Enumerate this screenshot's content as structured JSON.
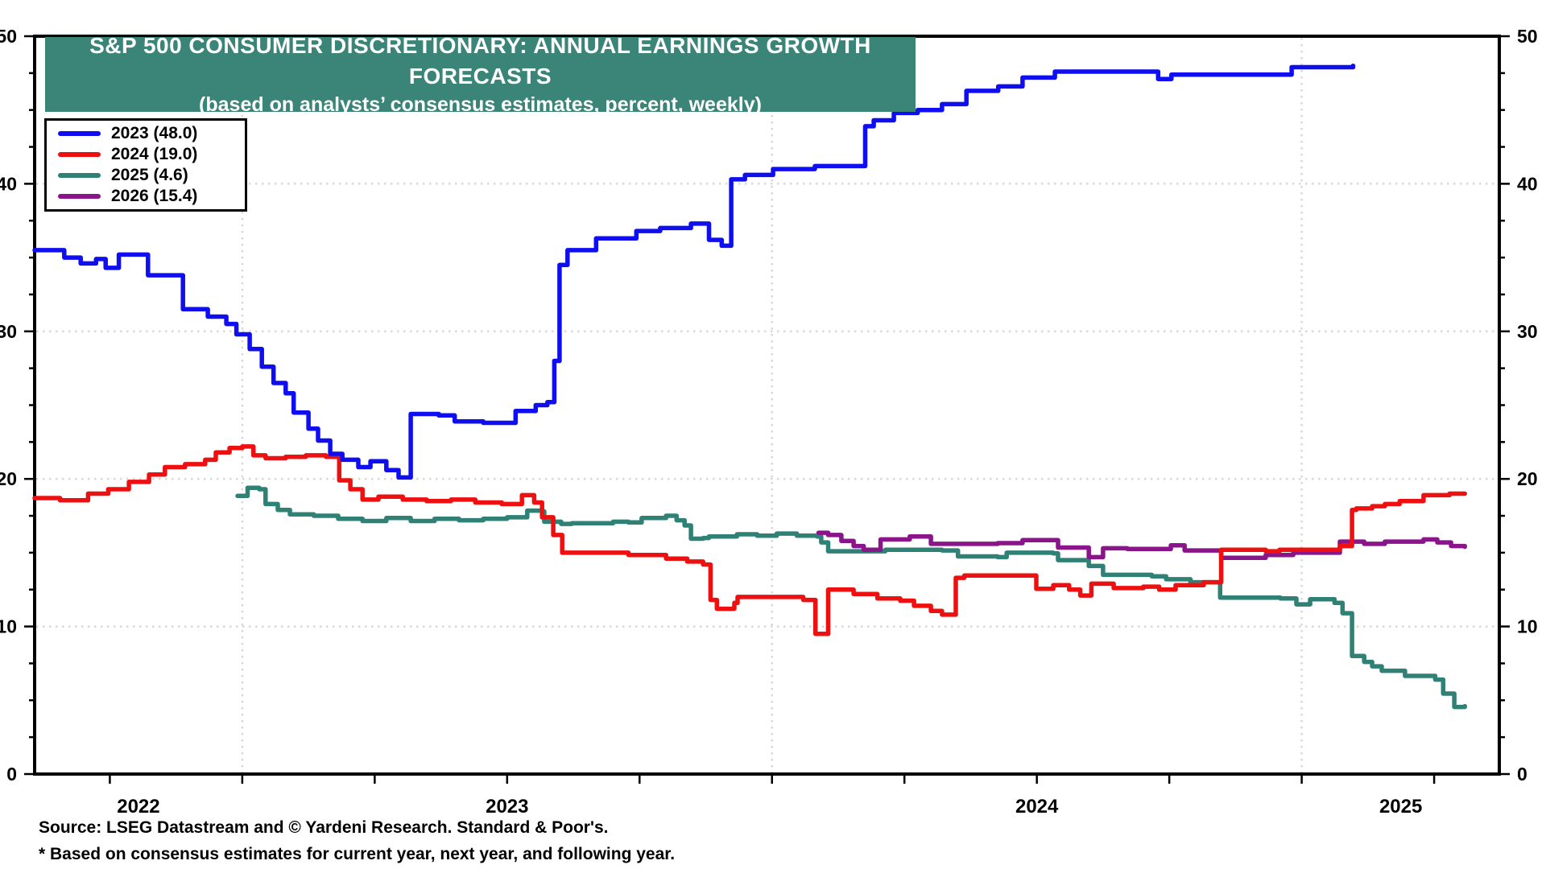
{
  "banner": {
    "title": "S&P 500 CONSUMER DISCRETIONARY: ANNUAL EARNINGS GROWTH FORECASTS",
    "subtitle": "(based on analysts’ consensus estimates, percent, weekly)",
    "bg_color": "#3B8478",
    "text_color": "#FFFFFF"
  },
  "legend": {
    "items": [
      {
        "label": "2023 (48.0)",
        "color": "#0E0EF0"
      },
      {
        "label": "2024 (19.0)",
        "color": "#EE1010"
      },
      {
        "label": "2025 (4.6)",
        "color": "#2E8174"
      },
      {
        "label": "2026 (15.4)",
        "color": "#8A158A"
      }
    ]
  },
  "footer": {
    "source": "Source: LSEG Datastream and © Yardeni Research. Standard & Poor's.",
    "note": "* Based on consensus estimates for current year, next year, and following year."
  },
  "chart_data": {
    "type": "line",
    "title": "S&P 500 Consumer Discretionary: Annual Earnings Growth Forecasts",
    "xlabel": "",
    "ylabel": "percent",
    "x_range": [
      2022.608,
      2025.373
    ],
    "y_range": [
      0,
      50
    ],
    "y_major_ticks": [
      0,
      10,
      20,
      30,
      40,
      50
    ],
    "y_minor_step": 2.5,
    "x_minor_ticks": [
      2022.75,
      2023.0,
      2023.25,
      2023.5,
      2023.75,
      2024.0,
      2024.25,
      2024.5,
      2024.75,
      2025.0,
      2025.25
    ],
    "x_gridlines": [
      2023.0,
      2024.0,
      2025.0
    ],
    "y_gridlines": [
      10,
      20,
      30,
      40
    ],
    "x_year_labels": [
      {
        "label": "2022",
        "t": 2022.804
      },
      {
        "label": "2023",
        "t": 2023.5
      },
      {
        "label": "2024",
        "t": 2024.5
      },
      {
        "label": "2025",
        "t": 2025.187
      }
    ],
    "grid_color": "#D8D8D8",
    "legend_position": "top-left",
    "series": [
      {
        "name": "2023",
        "final_value": 48.0,
        "color": "#0E0EF0",
        "points": [
          [
            2022.608,
            35.5
          ],
          [
            2022.664,
            35.0
          ],
          [
            2022.695,
            34.6
          ],
          [
            2022.724,
            34.9
          ],
          [
            2022.742,
            34.3
          ],
          [
            2022.767,
            35.2
          ],
          [
            2022.822,
            33.8
          ],
          [
            2022.888,
            31.5
          ],
          [
            2022.935,
            31.0
          ],
          [
            2022.97,
            30.5
          ],
          [
            2022.989,
            29.8
          ],
          [
            2023.014,
            28.8
          ],
          [
            2023.037,
            27.6
          ],
          [
            2023.059,
            26.5
          ],
          [
            2023.082,
            25.8
          ],
          [
            2023.097,
            24.5
          ],
          [
            2023.125,
            23.4
          ],
          [
            2023.143,
            22.6
          ],
          [
            2023.166,
            21.7
          ],
          [
            2023.189,
            21.3
          ],
          [
            2023.219,
            20.8
          ],
          [
            2023.242,
            21.2
          ],
          [
            2023.272,
            20.6
          ],
          [
            2023.295,
            20.1
          ],
          [
            2023.318,
            24.4
          ],
          [
            2023.371,
            24.3
          ],
          [
            2023.401,
            23.9
          ],
          [
            2023.455,
            23.8
          ],
          [
            2023.516,
            24.6
          ],
          [
            2023.554,
            25.0
          ],
          [
            2023.576,
            25.2
          ],
          [
            2023.589,
            28.0
          ],
          [
            2023.599,
            34.5
          ],
          [
            2023.614,
            35.5
          ],
          [
            2023.668,
            36.3
          ],
          [
            2023.744,
            36.8
          ],
          [
            2023.789,
            37.0
          ],
          [
            2023.847,
            37.3
          ],
          [
            2023.881,
            36.2
          ],
          [
            2023.905,
            35.8
          ],
          [
            2023.923,
            40.3
          ],
          [
            2023.949,
            40.6
          ],
          [
            2024.002,
            41.0
          ],
          [
            2024.081,
            41.2
          ],
          [
            2024.176,
            43.9
          ],
          [
            2024.192,
            44.3
          ],
          [
            2024.23,
            44.8
          ],
          [
            2024.275,
            45.0
          ],
          [
            2024.321,
            45.4
          ],
          [
            2024.367,
            46.3
          ],
          [
            2024.427,
            46.6
          ],
          [
            2024.473,
            47.2
          ],
          [
            2024.534,
            47.6
          ],
          [
            2024.729,
            47.1
          ],
          [
            2024.754,
            47.4
          ],
          [
            2024.981,
            47.9
          ],
          [
            2025.097,
            48.0
          ]
        ]
      },
      {
        "name": "2024",
        "final_value": 19.0,
        "color": "#EE1010",
        "points": [
          [
            2022.608,
            18.7
          ],
          [
            2022.656,
            18.55
          ],
          [
            2022.709,
            19.0
          ],
          [
            2022.747,
            19.3
          ],
          [
            2022.786,
            19.8
          ],
          [
            2022.824,
            20.3
          ],
          [
            2022.854,
            20.8
          ],
          [
            2022.892,
            21.0
          ],
          [
            2022.93,
            21.3
          ],
          [
            2022.95,
            21.8
          ],
          [
            2022.976,
            22.1
          ],
          [
            2023.0,
            22.2
          ],
          [
            2023.021,
            21.6
          ],
          [
            2023.044,
            21.4
          ],
          [
            2023.082,
            21.5
          ],
          [
            2023.12,
            21.6
          ],
          [
            2023.158,
            21.5
          ],
          [
            2023.183,
            19.9
          ],
          [
            2023.204,
            19.3
          ],
          [
            2023.227,
            18.6
          ],
          [
            2023.257,
            18.8
          ],
          [
            2023.303,
            18.6
          ],
          [
            2023.348,
            18.5
          ],
          [
            2023.394,
            18.6
          ],
          [
            2023.44,
            18.4
          ],
          [
            2023.49,
            18.3
          ],
          [
            2023.528,
            18.9
          ],
          [
            2023.551,
            18.4
          ],
          [
            2023.566,
            17.4
          ],
          [
            2023.587,
            16.2
          ],
          [
            2023.604,
            15.0
          ],
          [
            2023.729,
            14.85
          ],
          [
            2023.8,
            14.6
          ],
          [
            2023.84,
            14.4
          ],
          [
            2023.87,
            14.2
          ],
          [
            2023.884,
            11.8
          ],
          [
            2023.896,
            11.2
          ],
          [
            2023.929,
            11.6
          ],
          [
            2023.935,
            12.0
          ],
          [
            2024.059,
            11.8
          ],
          [
            2024.082,
            9.5
          ],
          [
            2024.106,
            12.5
          ],
          [
            2024.154,
            12.2
          ],
          [
            2024.199,
            11.9
          ],
          [
            2024.242,
            11.75
          ],
          [
            2024.268,
            11.4
          ],
          [
            2024.3,
            11.05
          ],
          [
            2024.321,
            10.8
          ],
          [
            2024.347,
            13.3
          ],
          [
            2024.363,
            13.45
          ],
          [
            2024.499,
            12.55
          ],
          [
            2024.531,
            12.8
          ],
          [
            2024.561,
            12.5
          ],
          [
            2024.582,
            12.1
          ],
          [
            2024.603,
            12.9
          ],
          [
            2024.645,
            12.6
          ],
          [
            2024.701,
            12.7
          ],
          [
            2024.731,
            12.5
          ],
          [
            2024.762,
            12.8
          ],
          [
            2024.815,
            13.0
          ],
          [
            2024.848,
            15.2
          ],
          [
            2024.932,
            15.1
          ],
          [
            2024.958,
            15.2
          ],
          [
            2025.072,
            15.45
          ],
          [
            2025.095,
            17.9
          ],
          [
            2025.103,
            18.0
          ],
          [
            2025.133,
            18.15
          ],
          [
            2025.157,
            18.3
          ],
          [
            2025.185,
            18.5
          ],
          [
            2025.23,
            18.9
          ],
          [
            2025.279,
            19.0
          ],
          [
            2025.308,
            19.0
          ]
        ]
      },
      {
        "name": "2025",
        "final_value": 4.6,
        "color": "#2E8174",
        "points": [
          [
            2022.991,
            18.85
          ],
          [
            2023.01,
            19.4
          ],
          [
            2023.032,
            19.3
          ],
          [
            2023.044,
            18.3
          ],
          [
            2023.067,
            17.9
          ],
          [
            2023.09,
            17.6
          ],
          [
            2023.135,
            17.5
          ],
          [
            2023.181,
            17.3
          ],
          [
            2023.227,
            17.15
          ],
          [
            2023.272,
            17.35
          ],
          [
            2023.318,
            17.15
          ],
          [
            2023.363,
            17.3
          ],
          [
            2023.409,
            17.2
          ],
          [
            2023.455,
            17.3
          ],
          [
            2023.5,
            17.4
          ],
          [
            2023.538,
            17.85
          ],
          [
            2023.566,
            17.8
          ],
          [
            2023.57,
            17.1
          ],
          [
            2023.602,
            16.95
          ],
          [
            2023.622,
            17.0
          ],
          [
            2023.7,
            17.1
          ],
          [
            2023.729,
            17.05
          ],
          [
            2023.754,
            17.35
          ],
          [
            2023.8,
            17.5
          ],
          [
            2023.82,
            17.2
          ],
          [
            2023.835,
            16.85
          ],
          [
            2023.847,
            15.95
          ],
          [
            2023.87,
            16.0
          ],
          [
            2023.881,
            16.1
          ],
          [
            2023.934,
            16.25
          ],
          [
            2023.972,
            16.15
          ],
          [
            2024.009,
            16.3
          ],
          [
            2024.047,
            16.15
          ],
          [
            2024.085,
            16.1
          ],
          [
            2024.093,
            15.7
          ],
          [
            2024.106,
            15.1
          ],
          [
            2024.179,
            15.1
          ],
          [
            2024.214,
            15.2
          ],
          [
            2024.321,
            15.15
          ],
          [
            2024.351,
            14.75
          ],
          [
            2024.426,
            14.7
          ],
          [
            2024.443,
            15.0
          ],
          [
            2024.531,
            14.95
          ],
          [
            2024.54,
            14.5
          ],
          [
            2024.598,
            14.1
          ],
          [
            2024.625,
            13.5
          ],
          [
            2024.717,
            13.4
          ],
          [
            2024.744,
            13.2
          ],
          [
            2024.79,
            13.0
          ],
          [
            2024.846,
            11.95
          ],
          [
            2024.96,
            11.9
          ],
          [
            2024.99,
            11.5
          ],
          [
            2025.016,
            11.85
          ],
          [
            2025.062,
            11.6
          ],
          [
            2025.077,
            10.9
          ],
          [
            2025.095,
            8.0
          ],
          [
            2025.118,
            7.6
          ],
          [
            2025.133,
            7.3
          ],
          [
            2025.151,
            7.0
          ],
          [
            2025.195,
            6.65
          ],
          [
            2025.252,
            6.4
          ],
          [
            2025.267,
            5.45
          ],
          [
            2025.288,
            4.55
          ],
          [
            2025.308,
            4.6
          ]
        ]
      },
      {
        "name": "2026",
        "final_value": 15.4,
        "color": "#8A158A",
        "points": [
          [
            2024.088,
            16.35
          ],
          [
            2024.106,
            16.2
          ],
          [
            2024.131,
            15.8
          ],
          [
            2024.154,
            15.45
          ],
          [
            2024.173,
            15.2
          ],
          [
            2024.205,
            15.9
          ],
          [
            2024.26,
            16.1
          ],
          [
            2024.3,
            15.6
          ],
          [
            2024.426,
            15.65
          ],
          [
            2024.473,
            15.85
          ],
          [
            2024.54,
            15.35
          ],
          [
            2024.598,
            14.7
          ],
          [
            2024.625,
            15.3
          ],
          [
            2024.671,
            15.25
          ],
          [
            2024.753,
            15.5
          ],
          [
            2024.779,
            15.15
          ],
          [
            2024.848,
            14.65
          ],
          [
            2024.932,
            14.85
          ],
          [
            2024.984,
            15.0
          ],
          [
            2025.072,
            15.75
          ],
          [
            2025.118,
            15.6
          ],
          [
            2025.157,
            15.75
          ],
          [
            2025.23,
            15.9
          ],
          [
            2025.256,
            15.7
          ],
          [
            2025.282,
            15.45
          ],
          [
            2025.308,
            15.4
          ]
        ]
      }
    ]
  }
}
